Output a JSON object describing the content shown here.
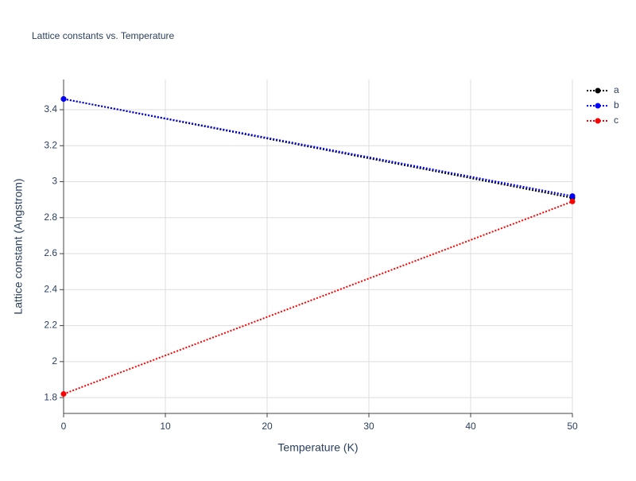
{
  "chart_data": {
    "type": "line",
    "title": "Lattice constants vs. Temperature",
    "x_label": "Temperature (K)",
    "y_label": "Lattice constant (Angstrom)",
    "x": [
      0,
      50
    ],
    "series": [
      {
        "name": "a",
        "color": "#000000",
        "values": [
          3.46,
          2.91
        ]
      },
      {
        "name": "b",
        "color": "#0000ff",
        "values": [
          3.46,
          2.92
        ]
      },
      {
        "name": "c",
        "color": "#ff0000",
        "values": [
          1.82,
          2.89
        ]
      }
    ],
    "xlim": [
      0,
      50
    ],
    "xticks": [
      0,
      10,
      20,
      30,
      40,
      50
    ],
    "ylim": [
      1.712,
      3.568
    ],
    "yticks": [
      1.8,
      2,
      2.2,
      2.4,
      2.6,
      2.8,
      3,
      3.2,
      3.4
    ],
    "grid": true
  }
}
